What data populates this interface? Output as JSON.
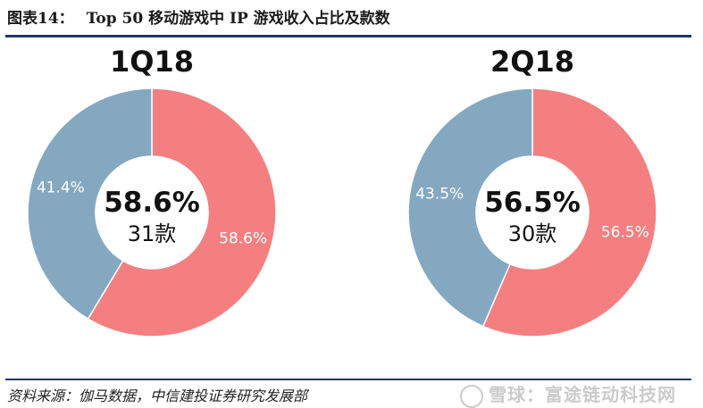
{
  "header": {
    "figure_no": "图表14：",
    "title": "Top 50 移动游戏中 IP 游戏收入占比及款数"
  },
  "colors": {
    "ip_slice": "#f47f80",
    "other_slice": "#85a8c1",
    "rule": "#1f3864"
  },
  "chart_data": [
    {
      "type": "pie",
      "title": "1Q18",
      "slices": [
        {
          "value": 58.6,
          "label": "58.6%",
          "color": "#f47f80"
        },
        {
          "value": 41.4,
          "label": "41.4%",
          "color": "#85a8c1"
        }
      ],
      "center_value": "58.6%",
      "center_count": "31款"
    },
    {
      "type": "pie",
      "title": "2Q18",
      "slices": [
        {
          "value": 56.5,
          "label": "56.5%",
          "color": "#f47f80"
        },
        {
          "value": 43.5,
          "label": "43.5%",
          "color": "#85a8c1"
        }
      ],
      "center_value": "56.5%",
      "center_count": "30款"
    }
  ],
  "footer": {
    "source": "资料来源：伽马数据，中信建投证券研究发展部",
    "watermark": "雪球：富途链动科技网"
  }
}
